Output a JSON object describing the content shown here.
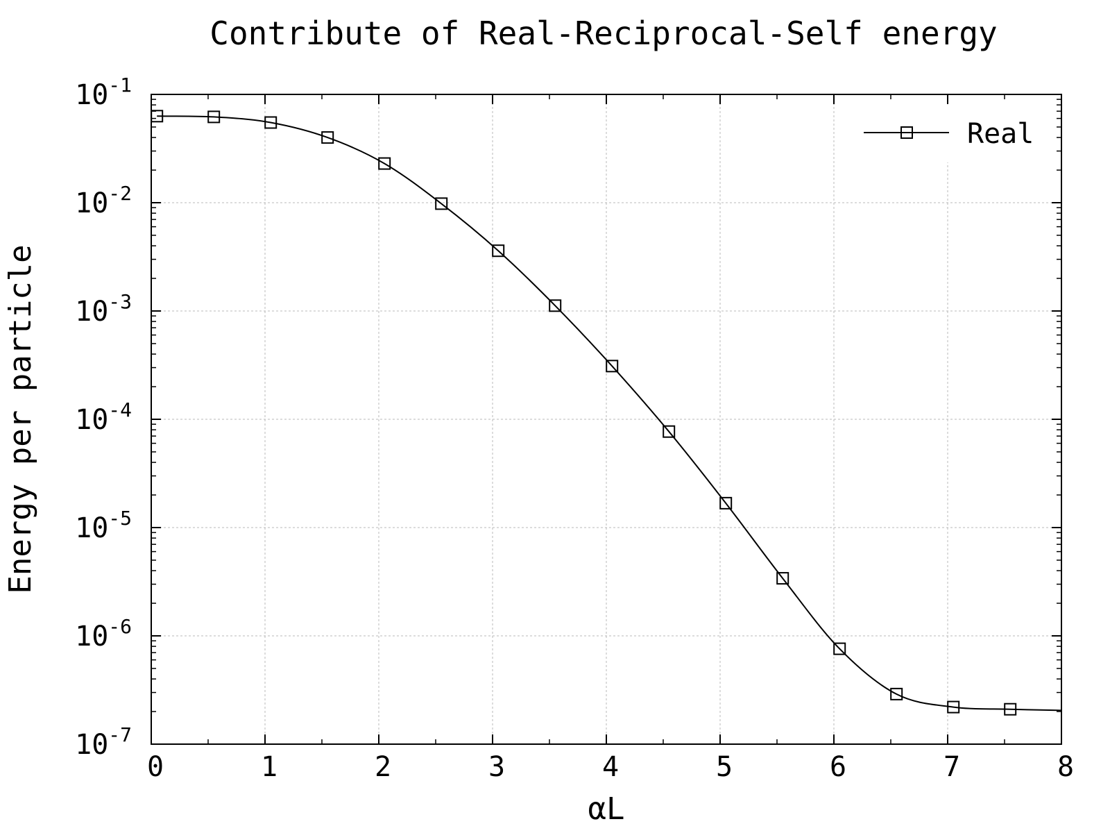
{
  "chart_data": {
    "type": "line",
    "title": "Contribute of Real-Reciprocal-Self energy",
    "xlabel": "αL",
    "ylabel": "Energy per particle",
    "xlim": [
      0,
      8
    ],
    "ylim": [
      1e-07,
      0.1
    ],
    "yscale": "log",
    "grid": true,
    "legend_position": "top-right",
    "x_ticks": [
      "0",
      "1",
      "2",
      "3",
      "4",
      "5",
      "6",
      "7",
      "8"
    ],
    "y_ticks": [
      {
        "base": "10",
        "exp": "-1"
      },
      {
        "base": "10",
        "exp": "-2"
      },
      {
        "base": "10",
        "exp": "-3"
      },
      {
        "base": "10",
        "exp": "-4"
      },
      {
        "base": "10",
        "exp": "-5"
      },
      {
        "base": "10",
        "exp": "-6"
      },
      {
        "base": "10",
        "exp": "-7"
      }
    ],
    "series": [
      {
        "name": "Real",
        "marker": "square",
        "color": "#000000",
        "x": [
          0.05,
          0.55,
          1.05,
          1.55,
          2.05,
          2.55,
          3.05,
          3.55,
          4.05,
          4.55,
          5.05,
          5.55,
          6.05,
          6.55,
          7.05,
          7.55
        ],
        "y": [
          0.063,
          0.062,
          0.055,
          0.04,
          0.023,
          0.0098,
          0.0036,
          0.00112,
          0.00031,
          7.7e-05,
          1.68e-05,
          3.4e-06,
          7.6e-07,
          2.9e-07,
          2.2e-07,
          2.1e-07
        ],
        "curve_end": {
          "x": 8.0,
          "y": 2.05e-07
        }
      }
    ]
  }
}
